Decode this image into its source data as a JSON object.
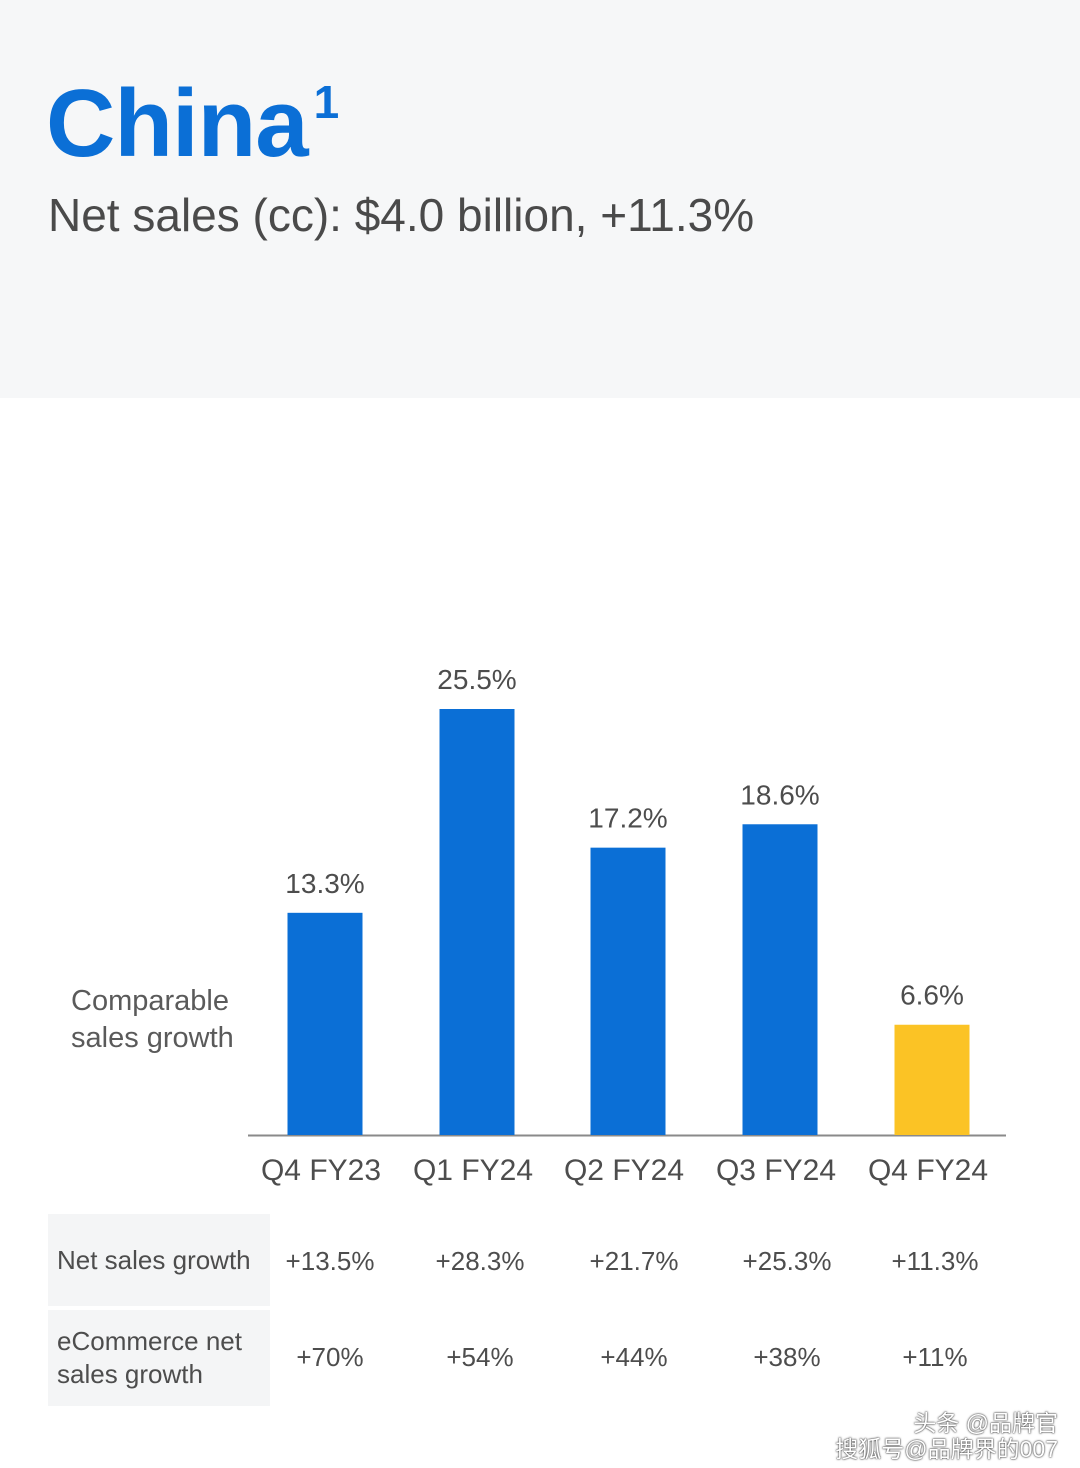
{
  "header": {
    "title": "China",
    "title_superscript": "1",
    "subtitle": "Net sales (cc): $4.0 billion, +11.3%"
  },
  "chart_data": {
    "type": "bar",
    "categories": [
      "Q4 FY23",
      "Q1 FY24",
      "Q2 FY24",
      "Q3 FY24",
      "Q4 FY24"
    ],
    "values": [
      13.3,
      25.5,
      17.2,
      18.6,
      6.6
    ],
    "value_labels": [
      "13.3%",
      "25.5%",
      "17.2%",
      "18.6%",
      "6.6%"
    ],
    "series_label": "Comparable sales growth",
    "ylim": [
      0,
      28
    ],
    "grid": false,
    "colors": {
      "bar": "#0b6fd6",
      "highlight": "#fbc325",
      "axis": "#8a8a8a"
    },
    "highlight_index": 4
  },
  "table": {
    "rows": [
      {
        "label": "Net sales growth",
        "label_lines": [
          "Net sales growth"
        ],
        "values": [
          "+13.5%",
          "+28.3%",
          "+21.7%",
          "+25.3%",
          "+11.3%"
        ]
      },
      {
        "label": "eCommerce net sales growth",
        "label_lines": [
          "eCommerce net",
          "sales growth"
        ],
        "values": [
          "+70%",
          "+54%",
          "+44%",
          "+38%",
          "+11%"
        ]
      }
    ]
  },
  "watermark": {
    "line1": "头条 @品牌官",
    "line2": "搜狐号@品牌界的007"
  }
}
